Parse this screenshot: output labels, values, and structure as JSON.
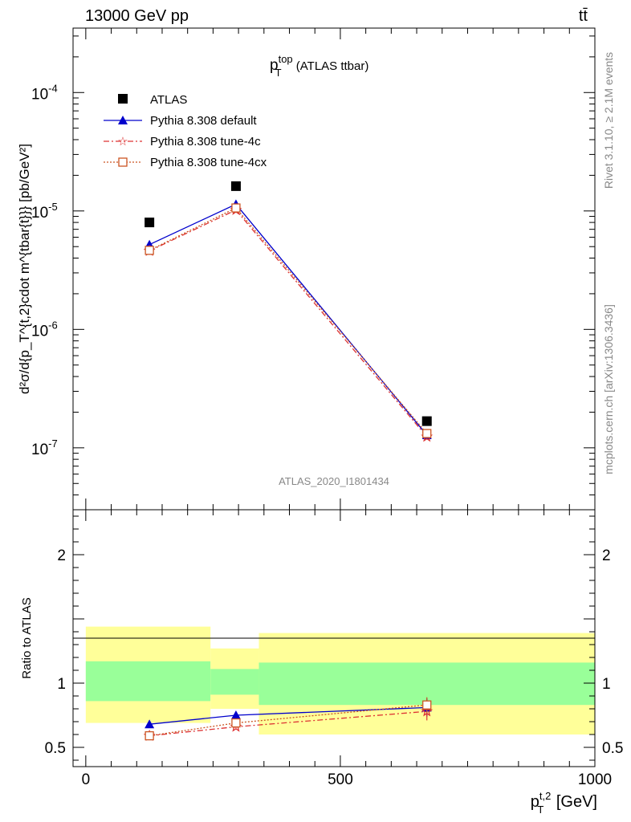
{
  "header": {
    "left": "13000 GeV pp",
    "right": "tt̄"
  },
  "side_labels": {
    "rivet": "Rivet 3.1.10, ≥ 2.1M events",
    "mcplots": "mcplots.cern.ch [arXiv:1306.3436]"
  },
  "analysis_label": "ATLAS_2020_I1801434",
  "chart_data": [
    {
      "type": "scatter",
      "title_main": "p",
      "title_sup": "top",
      "title_sub": "T",
      "title_rest": " (ATLAS ttbar)",
      "ylabel": "d²σ/d{p_T^{t,2}cdot m^{tbar{t}}} [pb/GeV²]",
      "yscale": "log",
      "xlim": [
        -25,
        1000
      ],
      "ylim": [
        3e-08,
        0.00035
      ],
      "ytick_labels": [
        "10",
        "10",
        "10",
        "10"
      ],
      "ytick_exponents": [
        "-7",
        "-6",
        "-5",
        "-4"
      ],
      "x": [
        125,
        295,
        670
      ],
      "series": [
        {
          "name": "ATLAS",
          "color": "#000000",
          "marker": "square",
          "values": [
            8e-06,
            1.62e-05,
            1.68e-07
          ]
        },
        {
          "name": "Pythia 8.308 default",
          "color": "#0000cc",
          "marker": "triangle",
          "line": "solid",
          "values": [
            5.2e-06,
            1.14e-05,
            1.28e-07
          ]
        },
        {
          "name": "Pythia 8.308 tune-4c",
          "color": "#dd3333",
          "marker": "star",
          "line": "dashdot",
          "values": [
            4.6e-06,
            1.02e-05,
            1.24e-07
          ]
        },
        {
          "name": "Pythia 8.308 tune-4cx",
          "color": "#cc5522",
          "marker": "open-square",
          "line": "dotted",
          "values": [
            4.65e-06,
            1.06e-05,
            1.32e-07
          ]
        }
      ]
    },
    {
      "type": "scatter",
      "ylabel": "Ratio to ATLAS",
      "xlabel": "p_T^{t,2} [GeV]",
      "xlim": [
        -25,
        1000
      ],
      "ylim": [
        0.35,
        2.35
      ],
      "xticks": [
        0,
        500,
        1000
      ],
      "xtick_labels": [
        "0",
        "500",
        "1000"
      ],
      "yticks": [
        0.5,
        1,
        2
      ],
      "ytick_labels": [
        "0.5",
        "1",
        "2"
      ],
      "bands": [
        {
          "x0": 0,
          "x1": 245,
          "inner": [
            0.86,
            1.17
          ],
          "outer": [
            0.69,
            1.44
          ]
        },
        {
          "x0": 245,
          "x1": 340,
          "inner": [
            0.91,
            1.11
          ],
          "outer": [
            0.8,
            1.27
          ]
        },
        {
          "x0": 340,
          "x1": 1000,
          "inner": [
            0.83,
            1.16
          ],
          "outer": [
            0.6,
            1.39
          ]
        }
      ],
      "band_colors": {
        "inner": "#99ff99",
        "outer": "#ffff99"
      },
      "x": [
        125,
        295,
        670
      ],
      "series": [
        {
          "name": "Pythia 8.308 default",
          "color": "#0000cc",
          "marker": "triangle",
          "line": "solid",
          "values": [
            0.68,
            0.75,
            0.81
          ],
          "err": [
            0.02,
            0.02,
            0.07
          ]
        },
        {
          "name": "Pythia 8.308 tune-4c",
          "color": "#dd3333",
          "marker": "star",
          "line": "dashdot",
          "values": [
            0.59,
            0.66,
            0.78
          ],
          "err": [
            0.015,
            0.015,
            0.07
          ]
        },
        {
          "name": "Pythia 8.308 tune-4cx",
          "color": "#cc5522",
          "marker": "open-square",
          "line": "dotted",
          "values": [
            0.59,
            0.69,
            0.83
          ],
          "err": [
            0.015,
            0.015,
            0.06
          ]
        }
      ]
    }
  ]
}
